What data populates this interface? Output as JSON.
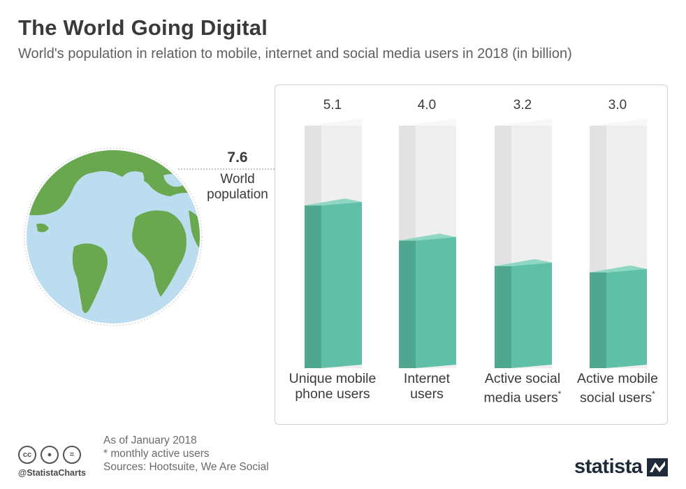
{
  "header": {
    "title": "The World Going Digital",
    "subtitle": "World's population in relation to mobile, internet and social media users in 2018 (in billion)"
  },
  "world_population": {
    "value": "7.6",
    "label_line1": "World",
    "label_line2": "population"
  },
  "footer": {
    "note_date": "As of January 2018",
    "note_asterisk": "* monthly active users",
    "sources": "Sources: Hootsuite, We Are Social",
    "handle": "@StatistaCharts",
    "brand": "statista"
  },
  "colors": {
    "fill_front": "#5fbfa7",
    "fill_side": "#50a78f",
    "fill_top": "#8fd6c3",
    "empty_front": "#efefef",
    "empty_side": "#e2e2e2",
    "empty_top": "#f7f7f7",
    "land": "#6aa84f",
    "ocean": "#bcdcf0"
  },
  "chart_data": {
    "type": "bar",
    "title": "The World Going Digital",
    "subtitle": "World's population in relation to mobile, internet and social media users in 2018 (in billion)",
    "max_reference": 7.6,
    "categories": [
      "Unique mobile phone users",
      "Internet users",
      "Active social media users*",
      "Active mobile social users*"
    ],
    "category_lines": [
      [
        "Unique mobile",
        "phone users"
      ],
      [
        "Internet",
        "users"
      ],
      [
        "Active social",
        "media users"
      ],
      [
        "Active mobile",
        "social users"
      ]
    ],
    "category_asterisk": [
      false,
      false,
      true,
      true
    ],
    "values": [
      5.1,
      4.0,
      3.2,
      3.0
    ],
    "value_labels": [
      "5.1",
      "4.0",
      "3.2",
      "3.0"
    ],
    "ylim": [
      0,
      7.6
    ]
  }
}
